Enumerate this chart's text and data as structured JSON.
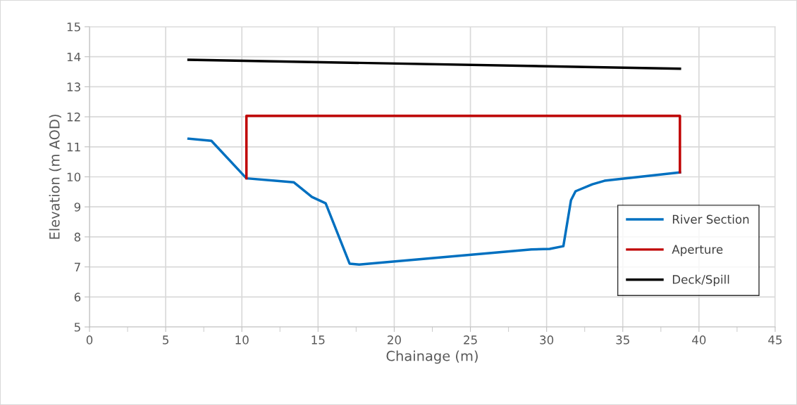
{
  "chart_data": {
    "type": "line",
    "xlabel": "Chainage (m)",
    "ylabel": "Elevation (m AOD)",
    "xlim": [
      0,
      45
    ],
    "xticks": [
      0,
      {
        "value": 2.5,
        "label": null
      },
      5,
      {
        "value": 7.5,
        "label": null
      },
      10,
      {
        "value": 12.5,
        "label": null
      },
      15,
      {
        "value": 17.5,
        "label": null
      },
      20,
      {
        "value": 22.5,
        "label": null
      },
      25,
      {
        "value": 27.5,
        "label": null
      },
      30,
      {
        "value": 32.5,
        "label": null
      },
      35,
      {
        "value": 37.5,
        "label": null
      },
      40,
      {
        "value": 42.5,
        "label": null
      },
      45
    ],
    "ylim": [
      5,
      15
    ],
    "yticks": [
      5,
      6,
      7,
      8,
      9,
      10,
      11,
      12,
      13,
      14,
      15
    ],
    "grid": true,
    "legend": "right",
    "marker": "none",
    "line_style": "solid",
    "series": [
      {
        "name": "River Section",
        "color": "#0070c0",
        "x": [
          6.5,
          8.0,
          10.3,
          13.4,
          14.6,
          15.5,
          17.07,
          17.7,
          29.0,
          30.2,
          31.1,
          31.6,
          31.9,
          33.0,
          33.8,
          38.75
        ],
        "values": [
          11.27,
          11.2,
          9.95,
          9.82,
          9.33,
          9.12,
          7.11,
          7.08,
          7.58,
          7.6,
          7.69,
          9.22,
          9.52,
          9.75,
          9.87,
          10.15
        ]
      },
      {
        "name": "Aperture",
        "color": "#c00000",
        "x": [
          10.3,
          10.3,
          38.75,
          38.75
        ],
        "values": [
          9.95,
          12.03,
          12.03,
          10.15
        ]
      },
      {
        "name": "Deck/Spill",
        "color": "#000000",
        "x": [
          6.5,
          38.75
        ],
        "values": [
          13.9,
          13.6
        ]
      }
    ]
  }
}
